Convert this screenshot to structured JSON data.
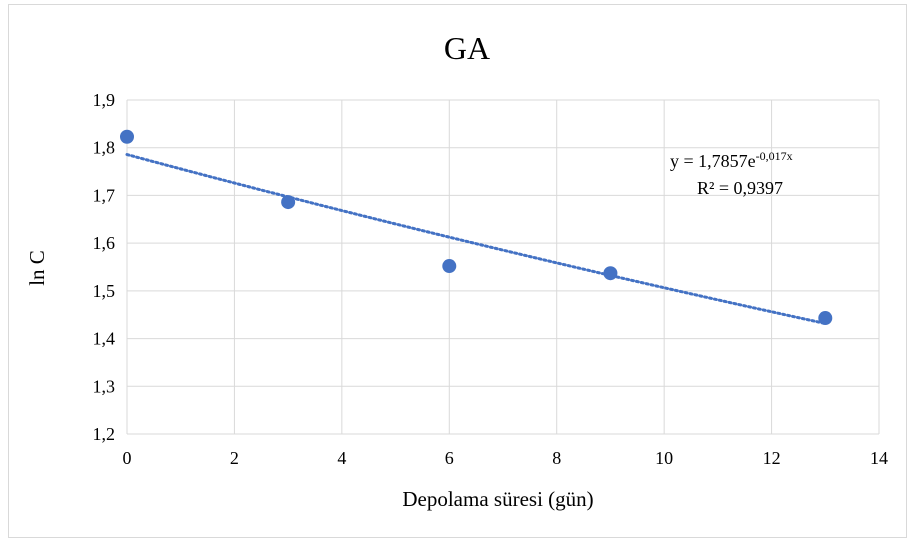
{
  "chart_data": {
    "type": "scatter",
    "title": "GA",
    "xlabel": "Depolama süresi (gün)",
    "ylabel": "ln C",
    "xlim": [
      0,
      14
    ],
    "ylim": [
      1.2,
      1.9
    ],
    "xticks": [
      0,
      2,
      4,
      6,
      8,
      10,
      12,
      14
    ],
    "xtick_labels": [
      "0",
      "2",
      "4",
      "6",
      "8",
      "10",
      "12",
      "14"
    ],
    "yticks": [
      1.2,
      1.3,
      1.4,
      1.5,
      1.6,
      1.7,
      1.8,
      1.9
    ],
    "ytick_labels": [
      "1,2",
      "1,3",
      "1,4",
      "1,5",
      "1,6",
      "1,7",
      "1,8",
      "1,9"
    ],
    "grid": true,
    "points": [
      {
        "x": 0,
        "y": 1.823
      },
      {
        "x": 3,
        "y": 1.686
      },
      {
        "x": 6,
        "y": 1.552
      },
      {
        "x": 9,
        "y": 1.537
      },
      {
        "x": 13,
        "y": 1.443
      }
    ],
    "point_color": "#4472c4",
    "trendline": {
      "type": "exponential",
      "a": 1.7857,
      "b": -0.017,
      "x_range": [
        0,
        13
      ],
      "color": "#4472c4",
      "equation_prefix": "y = 1,7857e",
      "equation_exponent": "-0,017x",
      "r_squared": "R² = 0,9397"
    }
  }
}
